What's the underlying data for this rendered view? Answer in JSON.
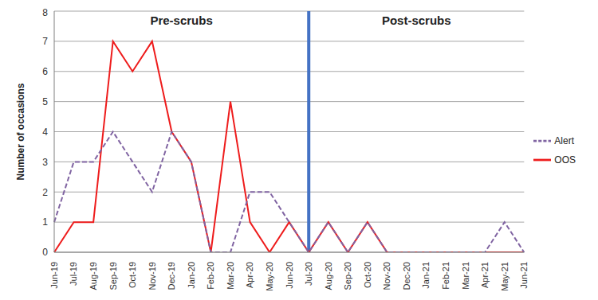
{
  "chart_data": {
    "type": "line",
    "y_label": "Number of occasions",
    "categories": [
      "Jun-19",
      "Jul-19",
      "Aug-19",
      "Sep-19",
      "Oct-19",
      "Nov-19",
      "Dec-19",
      "Jan-20",
      "Feb-20",
      "Mar-20",
      "Apr-20",
      "May-20",
      "Jun-20",
      "Jul-20",
      "Aug-20",
      "Sep-20",
      "Oct-20",
      "Nov-20",
      "Dec-20",
      "Jan-21",
      "Feb-21",
      "Mar-21",
      "Apr-21",
      "May-21",
      "Jun-21"
    ],
    "series": [
      {
        "name": "OOS",
        "color": "#ee1c1c",
        "line_style": "solid",
        "values": [
          0,
          1,
          1,
          7,
          6,
          7,
          4,
          3,
          0,
          5,
          1,
          0,
          1,
          0,
          1,
          0,
          1,
          0,
          0,
          0,
          0,
          0,
          0,
          0,
          0
        ]
      },
      {
        "name": "Alert",
        "color": "#8064a2",
        "line_style": "dashed",
        "values": [
          1,
          3,
          3,
          4,
          3,
          2,
          4,
          3,
          0,
          0,
          2,
          2,
          1,
          0,
          1,
          0,
          1,
          0,
          0,
          0,
          0,
          0,
          0,
          1,
          0
        ]
      }
    ],
    "ylim": [
      0,
      8
    ],
    "yticks": [
      0,
      1,
      2,
      3,
      4,
      5,
      6,
      7,
      8
    ],
    "grid": true,
    "legend": "right",
    "reference_line": {
      "x": "Jul-20",
      "color": "#4472c4"
    },
    "annotations": [
      {
        "text": "Pre-scrubs",
        "x_range": [
          "Jun-19",
          "Jul-20"
        ]
      },
      {
        "text": "Post-scrubs",
        "x_range": [
          "Jul-20",
          "Jun-21"
        ]
      }
    ]
  }
}
